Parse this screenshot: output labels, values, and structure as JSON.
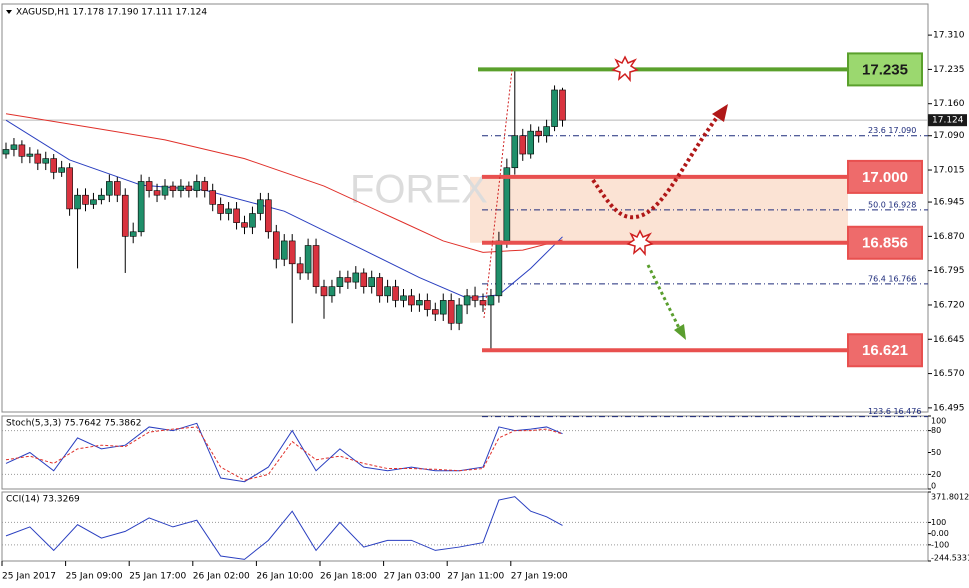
{
  "chart_data": {
    "type": "candlestick",
    "title": "XAGUSD,H1  17.178 17.190 17.111 17.124",
    "watermark": "FOREX",
    "categories": [
      "25 Jan 2017",
      null,
      null,
      null,
      null,
      null,
      null,
      null,
      "25 Jan 09:00",
      null,
      null,
      null,
      null,
      null,
      null,
      null,
      "25 Jan 17:00",
      null,
      null,
      null,
      null,
      null,
      null,
      null,
      "26 Jan 02:00",
      null,
      null,
      null,
      null,
      null,
      null,
      null,
      "26 Jan 10:00",
      null,
      null,
      null,
      null,
      null,
      null,
      null,
      "26 Jan 18:00",
      null,
      null,
      null,
      null,
      null,
      null,
      null,
      "27 Jan 03:00",
      null,
      null,
      null,
      null,
      null,
      null,
      null,
      "27 Jan 11:00",
      null,
      null,
      null,
      null,
      null,
      null,
      null,
      "27 Jan 19:00",
      null,
      null,
      null,
      null,
      null,
      null
    ],
    "open": [
      17.05,
      17.06,
      17.07,
      17.045,
      17.05,
      17.03,
      17.04,
      17.01,
      17.02,
      16.93,
      16.96,
      16.94,
      16.95,
      16.96,
      16.99,
      16.96,
      16.87,
      16.88,
      16.99,
      16.97,
      16.96,
      16.98,
      16.97,
      16.98,
      16.97,
      16.99,
      16.97,
      16.94,
      16.92,
      16.93,
      16.9,
      16.89,
      16.92,
      16.95,
      16.88,
      16.82,
      16.86,
      16.81,
      16.79,
      16.85,
      16.76,
      16.74,
      16.76,
      16.78,
      16.77,
      16.79,
      16.76,
      16.78,
      16.74,
      16.76,
      16.73,
      16.74,
      16.72,
      16.73,
      16.71,
      16.7,
      16.73,
      16.68,
      16.72,
      16.74,
      16.73,
      16.72,
      16.74,
      16.86,
      17.02,
      17.09,
      17.05,
      17.1,
      17.09,
      17.11,
      17.19
    ],
    "high": [
      17.075,
      17.085,
      17.08,
      17.065,
      17.06,
      17.055,
      17.05,
      17.035,
      17.03,
      16.975,
      16.975,
      16.965,
      16.975,
      17.005,
      17.0,
      16.975,
      16.9,
      17.005,
      17.0,
      16.985,
      16.995,
      16.99,
      16.995,
      16.99,
      17.005,
      17.0,
      16.985,
      16.955,
      16.945,
      16.945,
      16.915,
      16.935,
      16.965,
      16.965,
      16.895,
      16.875,
      16.875,
      16.825,
      16.865,
      16.865,
      16.775,
      16.775,
      16.795,
      16.795,
      16.805,
      16.8,
      16.795,
      16.79,
      16.775,
      16.775,
      16.755,
      16.755,
      16.745,
      16.745,
      16.725,
      16.745,
      16.745,
      16.735,
      16.755,
      16.76,
      16.745,
      16.755,
      16.88,
      17.04,
      17.235,
      17.105,
      17.115,
      17.11,
      17.125,
      17.2,
      17.195
    ],
    "low": [
      17.04,
      17.045,
      17.03,
      17.03,
      17.015,
      17.015,
      16.995,
      17.0,
      16.915,
      16.8,
      16.925,
      16.93,
      16.94,
      16.945,
      16.945,
      16.79,
      16.855,
      16.87,
      16.955,
      16.945,
      16.95,
      16.955,
      16.955,
      16.955,
      16.955,
      16.955,
      16.925,
      16.905,
      16.905,
      16.885,
      16.875,
      16.875,
      16.905,
      16.865,
      16.8,
      16.805,
      16.68,
      16.775,
      16.775,
      16.745,
      16.69,
      16.725,
      16.745,
      16.755,
      16.755,
      16.745,
      16.745,
      16.725,
      16.725,
      16.715,
      16.715,
      16.705,
      16.705,
      16.695,
      16.685,
      16.685,
      16.665,
      16.665,
      16.7,
      16.715,
      16.705,
      16.621,
      16.725,
      16.845,
      17.005,
      17.035,
      17.04,
      17.075,
      17.075,
      17.1,
      17.11
    ],
    "close": [
      17.06,
      17.07,
      17.045,
      17.05,
      17.03,
      17.04,
      17.01,
      17.02,
      16.93,
      16.96,
      16.94,
      16.95,
      16.96,
      16.99,
      16.96,
      16.87,
      16.88,
      16.99,
      16.97,
      16.96,
      16.98,
      16.97,
      16.98,
      16.97,
      16.99,
      16.97,
      16.94,
      16.92,
      16.93,
      16.9,
      16.89,
      16.92,
      16.95,
      16.88,
      16.82,
      16.86,
      16.81,
      16.79,
      16.85,
      16.76,
      16.74,
      16.76,
      16.78,
      16.77,
      16.79,
      16.76,
      16.78,
      16.74,
      16.76,
      16.73,
      16.74,
      16.72,
      16.73,
      16.71,
      16.7,
      16.73,
      16.68,
      16.72,
      16.74,
      16.73,
      16.72,
      16.74,
      16.86,
      17.02,
      17.09,
      17.05,
      17.1,
      17.09,
      17.11,
      17.19,
      17.124
    ],
    "up_color": "#1f8f6a",
    "down_color": "#d9333f",
    "ylim": [
      16.486,
      17.378
    ],
    "yticks": [
      {
        "value": 17.31,
        "label": "17.310"
      },
      {
        "value": 17.235,
        "label": "17.235"
      },
      {
        "value": 17.16,
        "label": "17.160"
      },
      {
        "value": 17.09,
        "label": "17.090"
      },
      {
        "value": 17.015,
        "label": "17.015"
      },
      {
        "value": 16.945,
        "label": "16.945"
      },
      {
        "value": 16.87,
        "label": "16.870"
      },
      {
        "value": 16.795,
        "label": "16.795"
      },
      {
        "value": 16.72,
        "label": "16.720"
      },
      {
        "value": 16.645,
        "label": "16.645"
      },
      {
        "value": 16.57,
        "label": "16.570"
      },
      {
        "value": 16.495,
        "label": "16.495"
      }
    ],
    "last_price": {
      "value": 17.124,
      "label": "17.124"
    },
    "overlays": [
      {
        "color": "#e0302a",
        "x": [
          0,
          10,
          20,
          30,
          40,
          50,
          55,
          60,
          65,
          70
        ],
        "values": [
          17.138,
          17.11,
          17.081,
          17.04,
          16.98,
          16.9,
          16.86,
          16.835,
          16.84,
          16.862
        ]
      },
      {
        "color": "#2a3fc0",
        "x": [
          0,
          8,
          17,
          25,
          35,
          45,
          52,
          58,
          62,
          66,
          70
        ],
        "values": [
          17.124,
          17.037,
          16.982,
          16.971,
          16.925,
          16.84,
          16.78,
          16.735,
          16.742,
          16.8,
          16.869
        ]
      }
    ],
    "zone_color": "#fbe3d4",
    "levels": [
      {
        "value": 17.235,
        "label": "17.235",
        "color": "#5aa02c",
        "fill": "#9bd86f",
        "text_color": "#1a1a1a"
      },
      {
        "value": 17.0,
        "label": "17.000",
        "color": "#e8504f",
        "fill": "#ee6b6b",
        "text_color": "#ffffff"
      },
      {
        "value": 16.856,
        "label": "16.856",
        "color": "#e8504f",
        "fill": "#ee6b6b",
        "text_color": "#ffffff"
      },
      {
        "value": 16.621,
        "label": "16.621",
        "color": "#e8504f",
        "fill": "#ee6b6b",
        "text_color": "#ffffff"
      }
    ],
    "fib_levels": [
      {
        "value": 17.09,
        "label": "23.6   17.090"
      },
      {
        "value": 16.928,
        "label": "50.0   16.928"
      },
      {
        "value": 16.766,
        "label": "76.4   16.766"
      },
      {
        "value": 16.476,
        "label": "123.6   16.476"
      }
    ],
    "indicators": [
      {
        "title": "Stoch(5,3,3) 75.7642 75.3862",
        "ylim": [
          0,
          100
        ],
        "yticks": [
          100,
          80,
          50,
          20,
          0
        ],
        "levels": [
          80,
          20
        ],
        "series": [
          {
            "color": "#2a3fc0",
            "x": [
              0,
              3,
              6,
              9,
              12,
              15,
              18,
              21,
              24,
              27,
              30,
              33,
              36,
              39,
              42,
              45,
              48,
              51,
              54,
              57,
              60,
              62,
              64,
              66,
              68,
              70
            ],
            "values": [
              35,
              50,
              25,
              70,
              55,
              60,
              85,
              80,
              90,
              15,
              10,
              30,
              80,
              25,
              55,
              30,
              25,
              30,
              25,
              25,
              30,
              85,
              80,
              82,
              85,
              75.7642
            ]
          },
          {
            "color": "#e0302a",
            "dashed": true,
            "x": [
              0,
              3,
              6,
              9,
              12,
              15,
              18,
              21,
              24,
              27,
              30,
              33,
              36,
              39,
              42,
              45,
              48,
              51,
              54,
              57,
              60,
              62,
              64,
              66,
              68,
              70
            ],
            "values": [
              40,
              45,
              35,
              55,
              60,
              58,
              78,
              82,
              85,
              30,
              12,
              20,
              65,
              40,
              45,
              35,
              28,
              28,
              27,
              25,
              28,
              70,
              80,
              80,
              82,
              75.3862
            ]
          }
        ]
      },
      {
        "title": "CCI(14) 73.3269",
        "ylim": [
          -244.5331,
          371.8012
        ],
        "yticks": [
          371.8012,
          100,
          {
            "value": 0,
            "label": "0.00"
          },
          -100,
          -244.5331
        ],
        "levels": [
          100,
          -100
        ],
        "series": [
          {
            "color": "#2a3fc0",
            "x": [
              0,
              3,
              6,
              9,
              12,
              15,
              18,
              21,
              24,
              27,
              30,
              33,
              36,
              39,
              42,
              45,
              48,
              51,
              54,
              57,
              60,
              62,
              64,
              66,
              68,
              70
            ],
            "values": [
              -20,
              60,
              -150,
              80,
              -40,
              20,
              140,
              60,
              120,
              -200,
              -230,
              -60,
              200,
              -150,
              100,
              -120,
              -60,
              -60,
              -150,
              -120,
              -80,
              300,
              330,
              200,
              150,
              73.3269
            ]
          }
        ]
      }
    ]
  }
}
